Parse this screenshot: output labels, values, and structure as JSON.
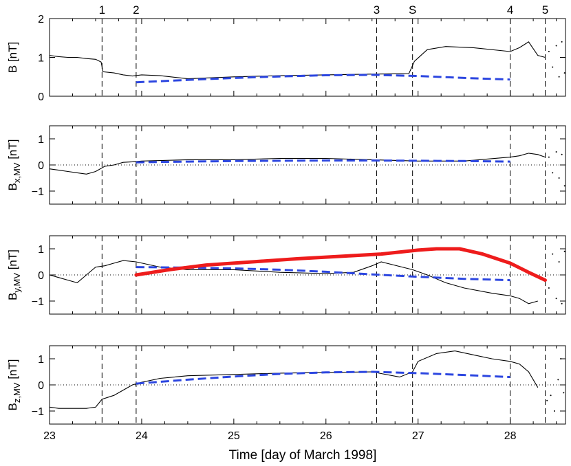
{
  "chart_data": {
    "type": "line",
    "xlabel": "Time [day of March  1998]",
    "xlim": [
      23,
      28.6
    ],
    "xticks": [
      23,
      24,
      25,
      26,
      27,
      28
    ],
    "xtick_labels": [
      "23",
      "24",
      "25",
      "26",
      "27",
      "28"
    ],
    "events": [
      {
        "label": "1",
        "x": 23.57
      },
      {
        "label": "2",
        "x": 23.94
      },
      {
        "label": "3",
        "x": 26.55
      },
      {
        "label": "S",
        "x": 26.94
      },
      {
        "label": "4",
        "x": 28.0
      },
      {
        "label": "5",
        "x": 28.38
      }
    ],
    "panels": [
      {
        "id": "b",
        "ylabel": "B [nT]",
        "ylabel_sub": "",
        "ylim": [
          0,
          2
        ],
        "yticks": [
          0,
          1,
          2
        ],
        "ytick_labels": [
          "0",
          "1",
          "2"
        ],
        "zero_line": false,
        "observed": {
          "name": "observed",
          "color": "#000000",
          "x": [
            23.0,
            23.1,
            23.2,
            23.3,
            23.4,
            23.5,
            23.56,
            23.58,
            23.7,
            23.8,
            23.9,
            24.0,
            24.2,
            24.5,
            25.0,
            25.5,
            26.0,
            26.5,
            26.9,
            26.96,
            27.1,
            27.3,
            27.6,
            28.0,
            28.1,
            28.2,
            28.3,
            28.38
          ],
          "y": [
            1.05,
            1.02,
            1.0,
            1.0,
            0.97,
            0.95,
            0.88,
            0.63,
            0.6,
            0.55,
            0.52,
            0.55,
            0.53,
            0.45,
            0.5,
            0.53,
            0.55,
            0.57,
            0.58,
            0.9,
            1.2,
            1.28,
            1.25,
            1.15,
            1.25,
            1.4,
            1.05,
            1.0
          ]
        },
        "scatter": {
          "x": [
            28.42,
            28.46,
            28.5,
            28.53,
            28.56,
            28.59
          ],
          "y": [
            1.15,
            0.75,
            1.3,
            0.5,
            1.4,
            0.6
          ]
        },
        "model": {
          "name": "model (dashed)",
          "color": "#2c46e0",
          "x": [
            23.94,
            24.5,
            25.0,
            25.5,
            26.0,
            26.5,
            27.0,
            27.5,
            28.0
          ],
          "y": [
            0.36,
            0.42,
            0.47,
            0.51,
            0.54,
            0.55,
            0.52,
            0.47,
            0.43
          ]
        }
      },
      {
        "id": "bx",
        "ylabel": "B",
        "ylabel_sub": "x,MV",
        "ylabel_unit": "[nT]",
        "ylim": [
          -1.5,
          1.5
        ],
        "yticks": [
          -1,
          0,
          1
        ],
        "ytick_labels": [
          "−1",
          "0",
          "1"
        ],
        "zero_line": true,
        "observed": {
          "name": "observed",
          "color": "#000000",
          "x": [
            23.0,
            23.1,
            23.2,
            23.3,
            23.4,
            23.5,
            23.6,
            23.7,
            23.8,
            23.9,
            24.0,
            24.5,
            25.0,
            25.5,
            26.0,
            26.5,
            27.0,
            27.5,
            28.0,
            28.1,
            28.2,
            28.3,
            28.38
          ],
          "y": [
            -0.15,
            -0.2,
            -0.25,
            -0.3,
            -0.35,
            -0.25,
            -0.05,
            0.0,
            0.1,
            0.12,
            0.15,
            0.2,
            0.2,
            0.25,
            0.25,
            0.2,
            0.15,
            0.15,
            0.3,
            0.35,
            0.45,
            0.4,
            0.3
          ]
        },
        "scatter": {
          "x": [
            28.42,
            28.46,
            28.5,
            28.53,
            28.56,
            28.59
          ],
          "y": [
            0.3,
            -0.3,
            0.5,
            -0.5,
            0.4,
            -0.8
          ]
        },
        "model": {
          "name": "model (dashed)",
          "color": "#2c46e0",
          "x": [
            23.94,
            24.5,
            25.0,
            25.5,
            26.0,
            26.5,
            27.0,
            27.5,
            28.0
          ],
          "y": [
            0.1,
            0.13,
            0.15,
            0.16,
            0.17,
            0.17,
            0.16,
            0.15,
            0.13
          ]
        }
      },
      {
        "id": "by",
        "ylabel": "B",
        "ylabel_sub": "y,MV",
        "ylabel_unit": "[nT]",
        "ylim": [
          -1.5,
          1.5
        ],
        "yticks": [
          -1,
          0,
          1
        ],
        "ytick_labels": [
          "−1",
          "0",
          "1"
        ],
        "zero_line": true,
        "observed": {
          "name": "observed",
          "color": "#000000",
          "x": [
            23.0,
            23.1,
            23.2,
            23.3,
            23.4,
            23.5,
            23.6,
            23.7,
            23.8,
            23.94,
            24.2,
            24.5,
            25.0,
            25.5,
            26.0,
            26.3,
            26.5,
            26.6,
            26.94,
            27.1,
            27.3,
            27.5,
            27.8,
            28.0,
            28.1,
            28.2,
            28.3
          ],
          "y": [
            0.0,
            -0.1,
            -0.2,
            -0.3,
            0.0,
            0.3,
            0.35,
            0.45,
            0.55,
            0.5,
            0.3,
            0.2,
            0.2,
            0.1,
            0.05,
            0.1,
            0.35,
            0.5,
            0.2,
            0.0,
            -0.3,
            -0.5,
            -0.7,
            -0.8,
            -0.9,
            -1.1,
            -1.0
          ]
        },
        "scatter": {
          "x": [
            28.42,
            28.46,
            28.5,
            28.53,
            28.56,
            28.59
          ],
          "y": [
            -0.5,
            0.8,
            -0.9,
            0.5,
            -1.1,
            0.9
          ]
        },
        "model": {
          "name": "model (dashed)",
          "color": "#2c46e0",
          "x": [
            23.94,
            24.5,
            25.0,
            25.5,
            26.0,
            26.5,
            27.0,
            27.5,
            28.0
          ],
          "y": [
            0.3,
            0.28,
            0.25,
            0.2,
            0.12,
            0.02,
            -0.07,
            -0.15,
            -0.2
          ]
        },
        "fit": {
          "name": "fit (solid red)",
          "color": "#ee1c1c",
          "x": [
            23.94,
            24.3,
            24.7,
            25.2,
            25.7,
            26.2,
            26.6,
            27.0,
            27.2,
            27.45,
            27.7,
            28.0,
            28.2,
            28.38
          ],
          "y": [
            0.0,
            0.2,
            0.38,
            0.5,
            0.62,
            0.72,
            0.8,
            0.95,
            1.0,
            1.0,
            0.8,
            0.45,
            0.1,
            -0.2
          ]
        }
      },
      {
        "id": "bz",
        "ylabel": "B",
        "ylabel_sub": "z,MV",
        "ylabel_unit": "[nT]",
        "ylim": [
          -1.5,
          1.5
        ],
        "yticks": [
          -1,
          0,
          1
        ],
        "ytick_labels": [
          "−1",
          "0",
          "1"
        ],
        "zero_line": true,
        "observed": {
          "name": "observed",
          "color": "#000000",
          "x": [
            23.0,
            23.1,
            23.2,
            23.3,
            23.4,
            23.5,
            23.57,
            23.7,
            23.8,
            23.9,
            24.0,
            24.2,
            24.5,
            25.0,
            25.5,
            26.0,
            26.5,
            26.8,
            26.94,
            27.0,
            27.2,
            27.4,
            27.6,
            27.8,
            28.0,
            28.1,
            28.2,
            28.3
          ],
          "y": [
            -0.85,
            -0.9,
            -0.9,
            -0.9,
            -0.9,
            -0.85,
            -0.55,
            -0.4,
            -0.2,
            0.0,
            0.1,
            0.25,
            0.35,
            0.4,
            0.45,
            0.48,
            0.5,
            0.3,
            0.5,
            0.9,
            1.2,
            1.3,
            1.15,
            1.0,
            0.9,
            0.8,
            0.5,
            -0.1
          ]
        },
        "scatter": {
          "x": [
            28.4,
            28.44,
            28.48,
            28.52,
            28.55,
            28.58
          ],
          "y": [
            -0.6,
            -0.4,
            -1.0,
            0.2,
            1.0,
            -0.3
          ]
        },
        "model": {
          "name": "model (dashed)",
          "color": "#2c46e0",
          "x": [
            23.94,
            24.5,
            25.0,
            25.5,
            26.0,
            26.5,
            27.0,
            27.5,
            28.0
          ],
          "y": [
            0.05,
            0.2,
            0.32,
            0.42,
            0.48,
            0.5,
            0.45,
            0.38,
            0.3
          ]
        }
      }
    ]
  }
}
